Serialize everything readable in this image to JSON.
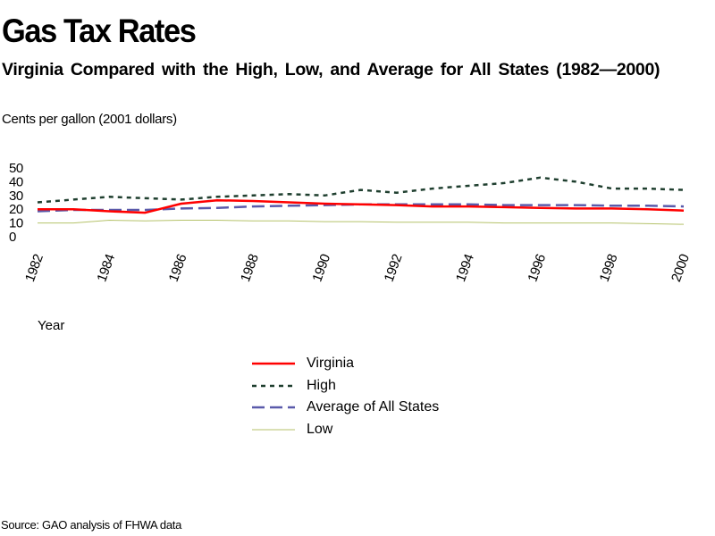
{
  "chart_data": {
    "type": "line",
    "title": "Gas Tax Rates",
    "subtitle": "Virginia Compared with the High, Low, and Average for All States (1982—2000)",
    "ylabel": "Cents per gallon (2001 dollars)",
    "xlabel": "Year",
    "ylim": [
      0,
      50
    ],
    "yticks": [
      "50",
      "40",
      "30",
      "20",
      "10",
      "0"
    ],
    "xticks": [
      "1982",
      "1984",
      "1986",
      "1988",
      "1990",
      "1992",
      "1994",
      "1996",
      "1998",
      "2000"
    ],
    "x": [
      1982,
      1983,
      1984,
      1985,
      1986,
      1987,
      1988,
      1989,
      1990,
      1991,
      1992,
      1993,
      1994,
      1995,
      1996,
      1997,
      1998,
      1999,
      2000
    ],
    "grid": false,
    "legend_position": "bottom-center",
    "series": [
      {
        "name": "Virginia",
        "color": "#ff0000",
        "style": "solid",
        "values": [
          20,
          20,
          18.5,
          17.5,
          24,
          26.5,
          26,
          25,
          24,
          23.5,
          23,
          22,
          22,
          21.5,
          21,
          20.5,
          20.5,
          20,
          19
        ]
      },
      {
        "name": "High",
        "color": "#1f3f2f",
        "style": "dotted",
        "values": [
          25,
          27,
          29,
          28,
          27,
          29,
          30,
          31,
          30,
          34,
          32,
          35,
          37,
          39,
          43,
          40,
          35,
          35,
          34
        ]
      },
      {
        "name": "Average of All States",
        "color": "#5a5aaa",
        "style": "dashed",
        "values": [
          18.5,
          19.5,
          19.5,
          19.5,
          20.5,
          21,
          22,
          22.5,
          23,
          23.5,
          23.5,
          23.5,
          23.5,
          23,
          23,
          23,
          22.5,
          22.5,
          22
        ]
      },
      {
        "name": "Low",
        "color": "#b5c26a",
        "style": "solid",
        "values": [
          10,
          10,
          12,
          11.5,
          12,
          12,
          11.5,
          11.5,
          11,
          11,
          10.5,
          10.5,
          10.5,
          10,
          10,
          10,
          10,
          9.5,
          9
        ]
      }
    ]
  },
  "source": "Source: GAO analysis of FHWA data"
}
